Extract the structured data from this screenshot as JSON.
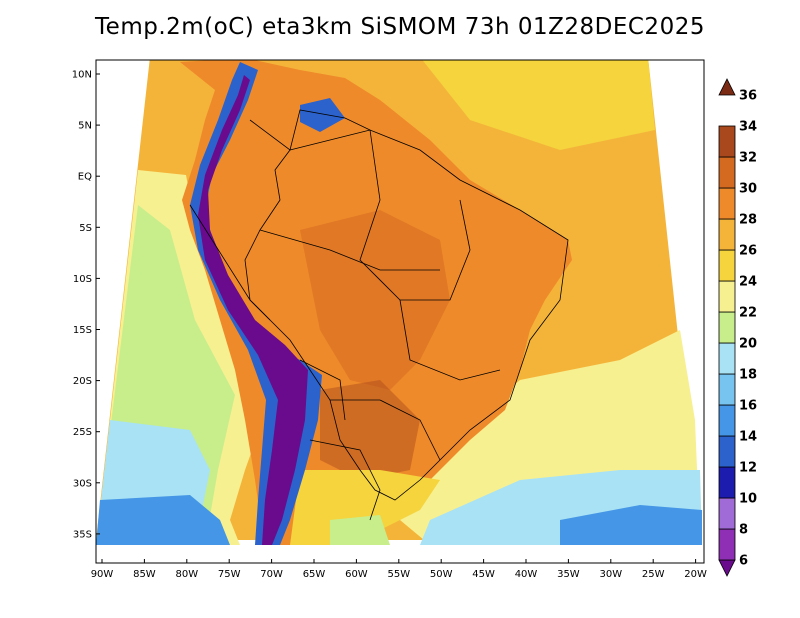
{
  "title": "Temp.2m(oC) eta3km SiSMOM 73h 01Z28DEC2025",
  "variable": "Temp.2m",
  "units": "oC",
  "model": "eta3km SiSMOM",
  "forecast_hour": "73h",
  "valid_time": "01Z28DEC2025",
  "lat_axis_labels": [
    "10N",
    "5N",
    "EQ",
    "5S",
    "10S",
    "15S",
    "20S",
    "25S",
    "30S",
    "35S"
  ],
  "lon_axis_labels": [
    "90W",
    "85W",
    "80W",
    "75W",
    "70W",
    "65W",
    "60W",
    "55W",
    "50W",
    "45W",
    "40W",
    "35W",
    "30W",
    "25W",
    "20W"
  ],
  "colorbar": {
    "levels": [
      "6",
      "8",
      "10",
      "12",
      "14",
      "16",
      "18",
      "20",
      "22",
      "24",
      "26",
      "28",
      "30",
      "32",
      "34",
      "36"
    ],
    "colors": [
      "#6a0a8c",
      "#8e2fb5",
      "#a06bd6",
      "#1c1cae",
      "#2c62cc",
      "#4596e6",
      "#78c4f0",
      "#a8e2f4",
      "#c8ee8c",
      "#f7f090",
      "#f5d43d",
      "#f4b43a",
      "#ef8a2a",
      "#d46a20",
      "#a8481c",
      "#7b2a14"
    ]
  },
  "colors": {
    "ocean_warm": "#f4b43a",
    "ocean_mild": "#f7f090",
    "ocean_cool": "#c8ee8c",
    "land_hot": "#ef8a2a",
    "andes_cold": "#6a0a8c",
    "border": "#000000"
  }
}
